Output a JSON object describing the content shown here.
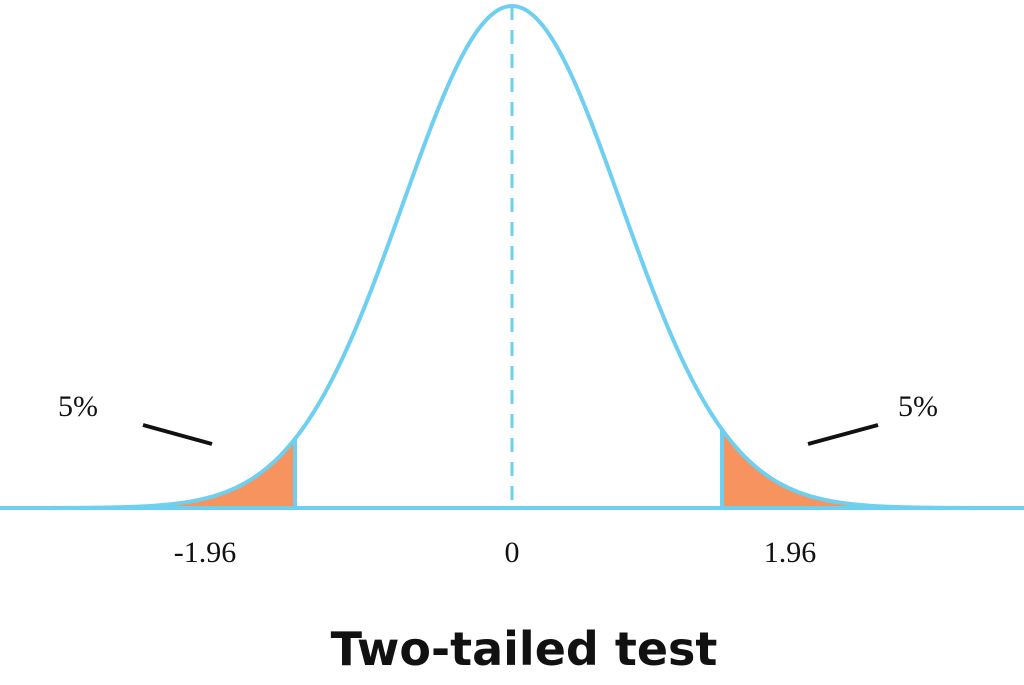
{
  "title": "Two-tailed test",
  "annotations": [
    {
      "label": "5%"
    },
    {
      "label": "5%"
    }
  ],
  "axis_labels": [
    "-1.96",
    "0",
    "1.96"
  ]
}
